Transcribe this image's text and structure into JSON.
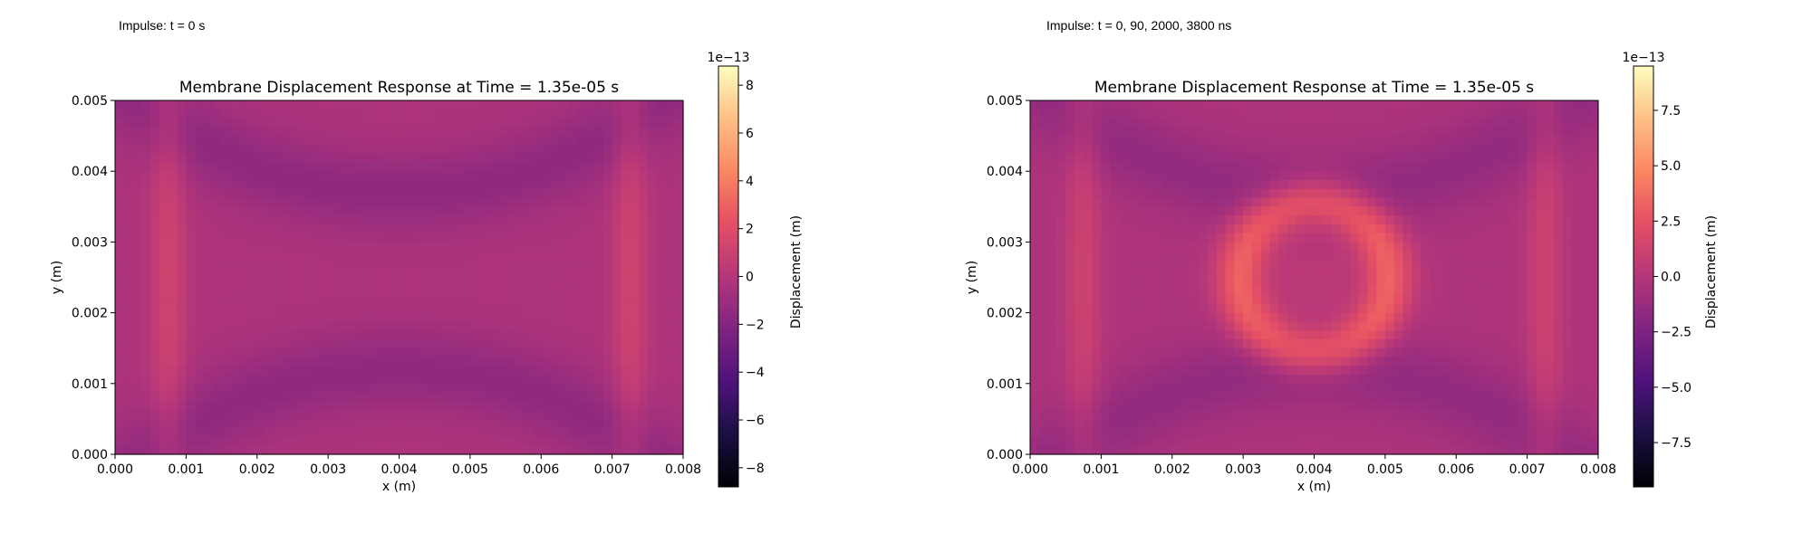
{
  "captions": [
    "Impulse: t = 0 s",
    "Impulse: t = 0, 90, 2000, 3800 ns"
  ],
  "chart_data": [
    {
      "type": "heatmap",
      "title": "Membrane Displacement Response at Time = 1.35e-05 s",
      "xlabel": "x (m)",
      "ylabel": "y (m)",
      "xlim": [
        0,
        0.008
      ],
      "ylim": [
        0,
        0.005
      ],
      "xticks": [
        "0.000",
        "0.001",
        "0.002",
        "0.003",
        "0.004",
        "0.005",
        "0.006",
        "0.007",
        "0.008"
      ],
      "yticks": [
        "0.000",
        "0.001",
        "0.002",
        "0.003",
        "0.004",
        "0.005"
      ],
      "colormap": "magma",
      "colorbar": {
        "label": "Displacement (m)",
        "exponent": "1e−13",
        "range": [
          -8.8,
          8.8
        ],
        "ticks": [
          -8,
          -6,
          -4,
          -2,
          0,
          2,
          4,
          6,
          8
        ],
        "ticklabels": [
          "−8",
          "−6",
          "−4",
          "−2",
          "0",
          "2",
          "4",
          "6",
          "8"
        ]
      },
      "field": {
        "description_values_e-13": "approximate displacement field",
        "background": 0.0,
        "edge_ridges": 1.5,
        "arc_troughs": -1.2,
        "center_ring": 0.0
      }
    },
    {
      "type": "heatmap",
      "title": "Membrane Displacement Response at Time = 1.35e-05 s",
      "xlabel": "x (m)",
      "ylabel": "y (m)",
      "xlim": [
        0,
        0.008
      ],
      "ylim": [
        0,
        0.005
      ],
      "xticks": [
        "0.000",
        "0.001",
        "0.002",
        "0.003",
        "0.004",
        "0.005",
        "0.006",
        "0.007",
        "0.008"
      ],
      "yticks": [
        "0.000",
        "0.001",
        "0.002",
        "0.003",
        "0.004",
        "0.005"
      ],
      "colormap": "magma",
      "colorbar": {
        "label": "Displacement (m)",
        "exponent": "1e−13",
        "range": [
          -9.5,
          9.5
        ],
        "ticks": [
          -7.5,
          -5.0,
          -2.5,
          0.0,
          2.5,
          5.0,
          7.5
        ],
        "ticklabels": [
          "−7.5",
          "−5.0",
          "−2.5",
          "0.0",
          "2.5",
          "5.0",
          "7.5"
        ]
      },
      "field": {
        "background": 0.0,
        "edge_ridges": 1.5,
        "arc_troughs": -1.2,
        "center_ring": 3.5
      }
    }
  ]
}
